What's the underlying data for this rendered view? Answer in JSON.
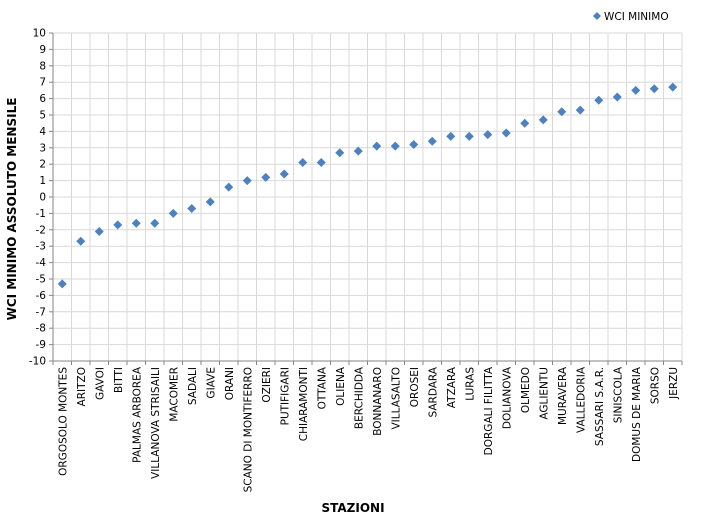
{
  "chart_data": {
    "type": "scatter",
    "title": "",
    "xlabel": "STAZIONI",
    "ylabel": "WCI MINIMO ASSOLUTO MENSILE",
    "ylim": [
      -10,
      10
    ],
    "ytick_step": 1,
    "grid": true,
    "legend_position": "top-right",
    "marker": "diamond",
    "colors": {
      "marker": "#4F81BD",
      "grid": "#D9D9D9",
      "axis": "#868686"
    },
    "categories": [
      "ORGOSOLO MONTES",
      "ARITZO",
      "GAVOI",
      "BITTI",
      "PALMAS ARBOREA",
      "VILLANOVA STRISAILI",
      "MACOMER",
      "SADALI",
      "GIAVE",
      "ORANI",
      "SCANO DI MONTIFERRO",
      "OZIERI",
      "PUTIFIGARI",
      "CHIARAMONTI",
      "OTTANA",
      "OLIENA",
      "BERCHIDDA",
      "BONNANARO",
      "VILLASALTO",
      "OROSEI",
      "SARDARA",
      "ATZARA",
      "LURAS",
      "DORGALI FILITTA",
      "DOLIANOVA",
      "OLMEDO",
      "AGLIENTU",
      "MURAVERA",
      "VALLEDORIA",
      "SASSARI S.A.R.",
      "SINISCOLA",
      "DOMUS DE MARIA",
      "SORSO",
      "JERZU"
    ],
    "series": [
      {
        "name": "WCI MINIMO",
        "values": [
          -5.3,
          -2.7,
          -2.1,
          -1.7,
          -1.6,
          -1.6,
          -1.0,
          -0.7,
          -0.3,
          0.6,
          1.0,
          1.2,
          1.4,
          2.1,
          2.1,
          2.7,
          2.8,
          3.1,
          3.1,
          3.2,
          3.4,
          3.7,
          3.7,
          3.8,
          3.9,
          4.5,
          4.7,
          5.2,
          5.3,
          5.9,
          6.1,
          6.5,
          6.6,
          6.7
        ]
      }
    ]
  }
}
